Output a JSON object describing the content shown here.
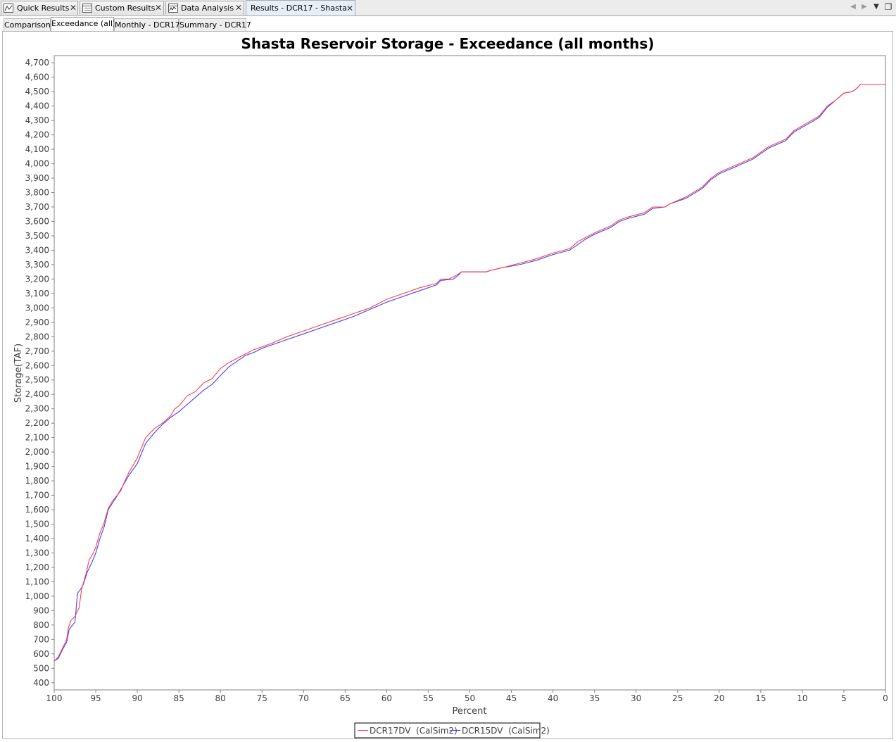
{
  "editor_tabs": [
    {
      "label": "Quick Results",
      "icon": "line-chart-icon",
      "closable": true
    },
    {
      "label": "Custom Results",
      "icon": "table-list-icon",
      "closable": true
    },
    {
      "label": "Data Analysis",
      "icon": "analysis-chart-icon",
      "closable": true
    },
    {
      "label": "Results - DCR17 - Shasta",
      "icon": "",
      "closable": true,
      "active": true
    }
  ],
  "tab_controls": {
    "prev": "◀",
    "next": "▶",
    "menu": "▼",
    "restore": "❐"
  },
  "sub_tabs": [
    {
      "label": "Comparison"
    },
    {
      "label": "Exceedance (all)",
      "active": true
    },
    {
      "label": "Monthly - DCR17"
    },
    {
      "label": "Summary - DCR17"
    }
  ],
  "chart_data": {
    "type": "line",
    "title": "Shasta Reservoir Storage - Exceedance (all months)",
    "xlabel": "Percent",
    "ylabel": "Storage(TAF)",
    "xlim": [
      100,
      0
    ],
    "x_reversed": true,
    "ylim": [
      350,
      4750
    ],
    "x_ticks": [
      "100",
      "95",
      "90",
      "85",
      "80",
      "75",
      "70",
      "65",
      "60",
      "55",
      "50",
      "45",
      "40",
      "35",
      "30",
      "25",
      "20",
      "15",
      "10",
      "5",
      "0"
    ],
    "y_ticks": [
      "400",
      "500",
      "600",
      "700",
      "800",
      "900",
      "1,000",
      "1,100",
      "1,200",
      "1,300",
      "1,400",
      "1,500",
      "1,600",
      "1,700",
      "1,800",
      "1,900",
      "2,000",
      "2,100",
      "2,200",
      "2,300",
      "2,400",
      "2,500",
      "2,600",
      "2,700",
      "2,800",
      "2,900",
      "3,000",
      "3,100",
      "3,200",
      "3,300",
      "3,400",
      "3,500",
      "3,600",
      "3,700",
      "3,800",
      "3,900",
      "4,000",
      "4,100",
      "4,200",
      "4,300",
      "4,400",
      "4,500",
      "4,600",
      "4,700"
    ],
    "grid": false,
    "legend_position": "bottom-center",
    "series": [
      {
        "name": "DCR17DV  (CalSim2)",
        "color": "#ff4040",
        "points": [
          [
            100,
            550
          ],
          [
            99.5,
            580
          ],
          [
            99,
            640
          ],
          [
            98.5,
            700
          ],
          [
            98.3,
            780
          ],
          [
            98,
            830
          ],
          [
            97.5,
            860
          ],
          [
            97,
            920
          ],
          [
            96.7,
            1050
          ],
          [
            96.2,
            1150
          ],
          [
            95.8,
            1250
          ],
          [
            95.3,
            1300
          ],
          [
            95,
            1340
          ],
          [
            94.5,
            1440
          ],
          [
            94,
            1510
          ],
          [
            93.5,
            1610
          ],
          [
            93,
            1660
          ],
          [
            92,
            1730
          ],
          [
            91.5,
            1800
          ],
          [
            91,
            1860
          ],
          [
            90,
            1960
          ],
          [
            89.5,
            2030
          ],
          [
            89,
            2100
          ],
          [
            88,
            2160
          ],
          [
            87,
            2200
          ],
          [
            86,
            2250
          ],
          [
            85.5,
            2300
          ],
          [
            85,
            2320
          ],
          [
            84,
            2390
          ],
          [
            83,
            2420
          ],
          [
            82,
            2480
          ],
          [
            81,
            2510
          ],
          [
            80,
            2580
          ],
          [
            79,
            2620
          ],
          [
            78,
            2650
          ],
          [
            77,
            2680
          ],
          [
            76,
            2710
          ],
          [
            75,
            2730
          ],
          [
            74,
            2750
          ],
          [
            72,
            2800
          ],
          [
            70,
            2840
          ],
          [
            68,
            2880
          ],
          [
            66,
            2920
          ],
          [
            64,
            2960
          ],
          [
            62,
            3000
          ],
          [
            60,
            3060
          ],
          [
            58,
            3100
          ],
          [
            56,
            3140
          ],
          [
            54,
            3170
          ],
          [
            53.5,
            3200
          ],
          [
            52.5,
            3200
          ],
          [
            51.5,
            3230
          ],
          [
            51,
            3250
          ],
          [
            48,
            3250
          ],
          [
            47.5,
            3260
          ],
          [
            46,
            3280
          ],
          [
            44,
            3310
          ],
          [
            42,
            3340
          ],
          [
            40,
            3380
          ],
          [
            38,
            3410
          ],
          [
            37,
            3460
          ],
          [
            36,
            3490
          ],
          [
            35,
            3520
          ],
          [
            33,
            3570
          ],
          [
            32,
            3610
          ],
          [
            31,
            3630
          ],
          [
            29,
            3660
          ],
          [
            28,
            3700
          ],
          [
            26.5,
            3700
          ],
          [
            26,
            3720
          ],
          [
            24,
            3770
          ],
          [
            22,
            3840
          ],
          [
            21,
            3900
          ],
          [
            20,
            3940
          ],
          [
            18,
            3990
          ],
          [
            16,
            4040
          ],
          [
            14,
            4120
          ],
          [
            12,
            4170
          ],
          [
            11,
            4230
          ],
          [
            9.5,
            4280
          ],
          [
            8,
            4330
          ],
          [
            7,
            4400
          ],
          [
            6,
            4440
          ],
          [
            5,
            4490
          ],
          [
            4,
            4500
          ],
          [
            3.5,
            4520
          ],
          [
            3,
            4550
          ],
          [
            0,
            4550
          ]
        ]
      },
      {
        "name": "DCR15DV  (CalSim2)",
        "color": "#4040ff",
        "points": [
          [
            100,
            550
          ],
          [
            99.5,
            570
          ],
          [
            99,
            630
          ],
          [
            98.5,
            680
          ],
          [
            98.2,
            770
          ],
          [
            97.8,
            800
          ],
          [
            97.5,
            820
          ],
          [
            97.2,
            1020
          ],
          [
            96.8,
            1050
          ],
          [
            96.5,
            1080
          ],
          [
            96,
            1170
          ],
          [
            95.5,
            1230
          ],
          [
            95,
            1300
          ],
          [
            94.5,
            1400
          ],
          [
            94,
            1480
          ],
          [
            93.5,
            1600
          ],
          [
            92.5,
            1690
          ],
          [
            92,
            1740
          ],
          [
            91,
            1840
          ],
          [
            90,
            1920
          ],
          [
            89,
            2060
          ],
          [
            88,
            2130
          ],
          [
            87,
            2190
          ],
          [
            86,
            2240
          ],
          [
            85,
            2280
          ],
          [
            84,
            2330
          ],
          [
            83,
            2380
          ],
          [
            82,
            2430
          ],
          [
            81,
            2470
          ],
          [
            80,
            2530
          ],
          [
            79,
            2590
          ],
          [
            78,
            2630
          ],
          [
            77,
            2670
          ],
          [
            76,
            2690
          ],
          [
            75,
            2720
          ],
          [
            74,
            2740
          ],
          [
            72,
            2780
          ],
          [
            70,
            2820
          ],
          [
            68,
            2860
          ],
          [
            66,
            2900
          ],
          [
            64,
            2940
          ],
          [
            62,
            2990
          ],
          [
            60,
            3040
          ],
          [
            58,
            3080
          ],
          [
            56,
            3120
          ],
          [
            54,
            3160
          ],
          [
            53.5,
            3190
          ],
          [
            52,
            3200
          ],
          [
            51.5,
            3220
          ],
          [
            51,
            3250
          ],
          [
            48,
            3250
          ],
          [
            47.5,
            3260
          ],
          [
            46,
            3280
          ],
          [
            44,
            3300
          ],
          [
            42,
            3330
          ],
          [
            40,
            3370
          ],
          [
            38,
            3400
          ],
          [
            37,
            3440
          ],
          [
            36,
            3480
          ],
          [
            35,
            3510
          ],
          [
            33,
            3560
          ],
          [
            32,
            3600
          ],
          [
            31,
            3620
          ],
          [
            29,
            3650
          ],
          [
            28,
            3690
          ],
          [
            26.5,
            3700
          ],
          [
            26,
            3720
          ],
          [
            24,
            3760
          ],
          [
            22,
            3830
          ],
          [
            21,
            3890
          ],
          [
            20,
            3930
          ],
          [
            18,
            3980
          ],
          [
            16,
            4030
          ],
          [
            14,
            4110
          ],
          [
            12,
            4160
          ],
          [
            11,
            4220
          ],
          [
            9.5,
            4270
          ],
          [
            8,
            4320
          ],
          [
            7,
            4390
          ],
          [
            6,
            4440
          ],
          [
            5,
            4490
          ],
          [
            4,
            4500
          ],
          [
            3.5,
            4520
          ],
          [
            3,
            4550
          ],
          [
            0,
            4550
          ]
        ]
      }
    ]
  }
}
